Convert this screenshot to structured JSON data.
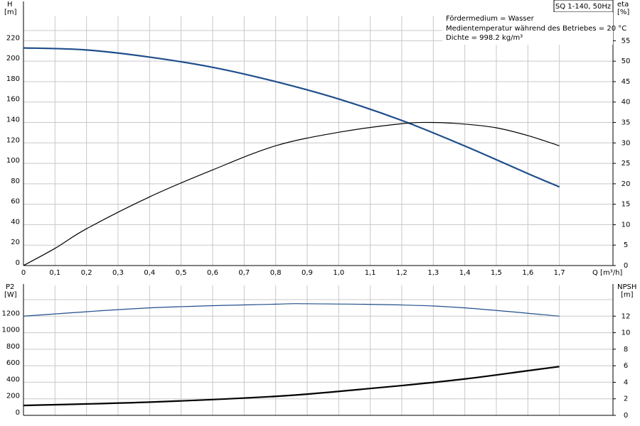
{
  "chart_data": [
    {
      "type": "line",
      "title": "SQ 1-140, 50Hz",
      "annotations": [
        "Fördermedium = Wasser",
        "Medientemperatur während des Betriebes = 20 °C",
        "Dichte = 998.2 kg/m³"
      ],
      "xlabel": "Q [m³/h]",
      "ylabel": "H",
      "ylabel_unit": "[m]",
      "y2label": "eta",
      "y2label_unit": "[%]",
      "xlim": [
        0,
        1.87
      ],
      "xticks": [
        0,
        {
          "value": 0.1,
          "label": "0,1"
        },
        {
          "value": 0.2,
          "label": "0,2"
        },
        {
          "value": 0.3,
          "label": "0,3"
        },
        {
          "value": 0.4,
          "label": "0,4"
        },
        {
          "value": 0.5,
          "label": "0,5"
        },
        {
          "value": 0.6,
          "label": "0,6"
        },
        {
          "value": 0.7,
          "label": "0,7"
        },
        {
          "value": 0.8,
          "label": "0,8"
        },
        {
          "value": 0.9,
          "label": "0,9"
        },
        {
          "value": 1.0,
          "label": "1,0"
        },
        {
          "value": 1.1,
          "label": "1,1"
        },
        {
          "value": 1.2,
          "label": "1,2"
        },
        {
          "value": 1.3,
          "label": "1,3"
        },
        {
          "value": 1.4,
          "label": "1,4"
        },
        {
          "value": 1.5,
          "label": "1,5"
        },
        {
          "value": 1.6,
          "label": "1,6"
        },
        {
          "value": 1.7,
          "label": "1,7"
        }
      ],
      "ylim": [
        0,
        230
      ],
      "yticks": [
        0,
        20,
        40,
        60,
        80,
        100,
        120,
        140,
        160,
        180,
        200,
        220
      ],
      "y2lim": [
        0,
        57.5
      ],
      "y2ticks": [
        0,
        5,
        10,
        15,
        20,
        25,
        30,
        35,
        40,
        45,
        50,
        55
      ],
      "grid": true,
      "series": [
        {
          "color": "#1f4e8c",
          "x": [
            0,
            0.2,
            0.4,
            0.6,
            0.8,
            1.0,
            1.2,
            1.4,
            1.6,
            1.7
          ],
          "values": [
            213,
            211,
            204,
            194,
            180,
            163,
            142,
            117,
            90,
            77
          ]
        },
        {
          "color": "#000000",
          "axis": "y2",
          "x": [
            0,
            0.1,
            0.2,
            0.4,
            0.6,
            0.8,
            1.0,
            1.2,
            1.3,
            1.4,
            1.5,
            1.6,
            1.7
          ],
          "values": [
            0,
            4.2,
            9,
            16.8,
            23.4,
            29.3,
            32.6,
            34.7,
            35,
            34.6,
            33.7,
            31.8,
            29.3
          ]
        }
      ]
    },
    {
      "type": "line",
      "ylabel": "P2",
      "ylabel_unit": "[W]",
      "y2label": "NPSH",
      "y2label_unit": "[m]",
      "ylim": [
        0,
        1400
      ],
      "yticks": [
        0,
        200,
        400,
        600,
        800,
        1000,
        1200
      ],
      "y2lim": [
        0,
        14
      ],
      "y2ticks": [
        0,
        2,
        4,
        6,
        8,
        10,
        12
      ],
      "grid": true,
      "series": [
        {
          "color": "#1f4e8c",
          "x": [
            0,
            0.4,
            0.8,
            0.9,
            1.2,
            1.4,
            1.7
          ],
          "values": [
            1200,
            1300,
            1345,
            1350,
            1335,
            1300,
            1200
          ]
        },
        {
          "color": "#000000",
          "axis": "y2",
          "x": [
            0,
            0.4,
            0.8,
            1.0,
            1.2,
            1.4,
            1.6,
            1.7
          ],
          "values": [
            1.2,
            1.6,
            2.3,
            2.9,
            3.6,
            4.4,
            5.4,
            5.9
          ]
        }
      ]
    }
  ]
}
